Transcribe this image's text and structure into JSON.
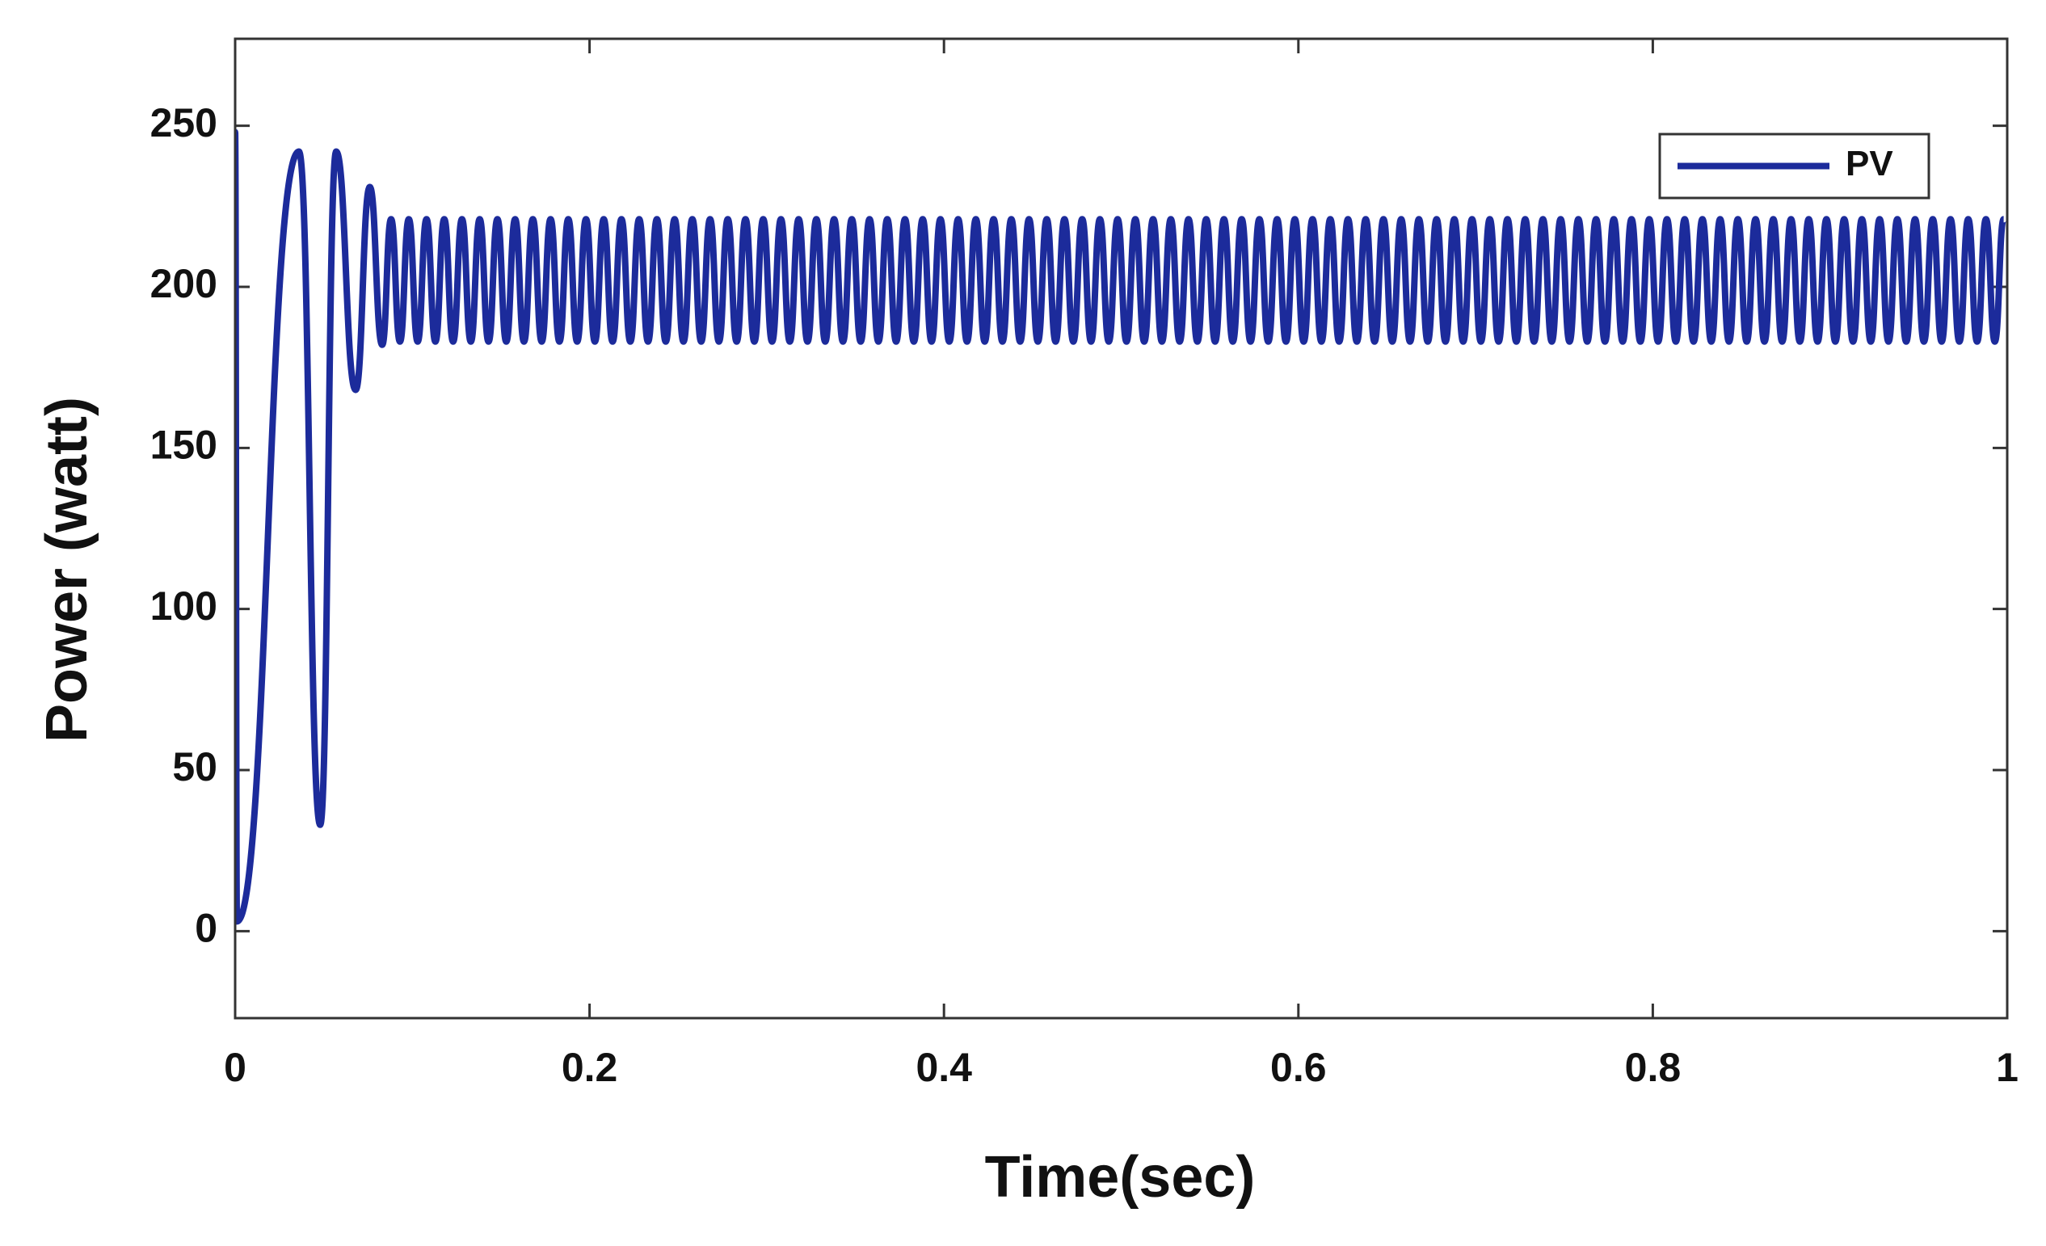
{
  "chart_data": {
    "type": "line",
    "xlabel": "Time(sec)",
    "ylabel": "Power (watt)",
    "xlim": [
      0,
      1
    ],
    "ylim": [
      -27,
      277
    ],
    "xticks": [
      0,
      0.2,
      0.4,
      0.6,
      0.8,
      1
    ],
    "yticks": [
      0,
      50,
      100,
      150,
      200,
      250
    ],
    "legend": "upper right",
    "x": [
      0,
      0.001,
      0.036,
      0.048,
      0.057,
      0.068,
      0.076,
      0.083,
      0.088,
      0.093,
      0.098,
      0.103,
      0.108,
      0.113,
      0.118,
      0.123,
      0.128,
      0.133,
      0.138,
      0.143,
      0.148,
      0.153,
      0.158,
      0.163,
      0.168,
      0.173,
      0.178,
      0.183,
      0.188,
      0.193,
      0.198,
      0.203,
      0.208,
      0.213,
      0.218,
      0.223,
      0.228,
      0.233,
      0.238,
      0.243,
      0.248,
      0.253,
      0.258,
      0.263,
      0.268,
      0.273,
      0.278,
      0.283,
      0.288,
      0.293,
      0.298,
      0.303,
      0.308,
      0.313,
      0.318,
      0.323,
      0.328,
      0.333,
      0.338,
      0.343,
      0.348,
      0.353,
      0.358,
      0.363,
      0.368,
      0.373,
      0.378,
      0.383,
      0.388,
      0.393,
      0.398,
      0.403,
      0.408,
      0.413,
      0.418,
      0.423,
      0.428,
      0.433,
      0.438,
      0.443,
      0.448,
      0.453,
      0.458,
      0.463,
      0.468,
      0.473,
      0.478,
      0.483,
      0.488,
      0.493,
      0.498,
      0.503,
      0.508,
      0.513,
      0.518,
      0.523,
      0.528,
      0.533,
      0.538,
      0.543,
      0.548,
      0.553,
      0.558,
      0.563,
      0.568,
      0.573,
      0.578,
      0.583,
      0.588,
      0.593,
      0.598,
      0.603,
      0.608,
      0.613,
      0.618,
      0.623,
      0.628,
      0.633,
      0.638,
      0.643,
      0.648,
      0.653,
      0.658,
      0.663,
      0.668,
      0.673,
      0.678,
      0.683,
      0.688,
      0.693,
      0.698,
      0.703,
      0.708,
      0.713,
      0.718,
      0.723,
      0.728,
      0.733,
      0.738,
      0.743,
      0.748,
      0.753,
      0.758,
      0.763,
      0.768,
      0.773,
      0.778,
      0.783,
      0.788,
      0.793,
      0.798,
      0.803,
      0.808,
      0.813,
      0.818,
      0.823,
      0.828,
      0.833,
      0.838,
      0.843,
      0.848,
      0.853,
      0.858,
      0.863,
      0.868,
      0.873,
      0.878,
      0.883,
      0.888,
      0.893,
      0.898,
      0.903,
      0.908,
      0.913,
      0.918,
      0.923,
      0.928,
      0.933,
      0.938,
      0.943,
      0.948,
      0.953,
      0.958,
      0.963,
      0.968,
      0.973,
      0.978,
      0.983,
      0.988,
      0.993,
      0.998
    ],
    "series": [
      {
        "name": "PV",
        "color": "#1c2b9b",
        "values": [
          248,
          3,
          242,
          33,
          242,
          168,
          231,
          182,
          221,
          183,
          221,
          183,
          221,
          183,
          221,
          183,
          221,
          183,
          221,
          183,
          221,
          183,
          221,
          183,
          221,
          183,
          221,
          183,
          221,
          183,
          221,
          183,
          221,
          183,
          221,
          183,
          221,
          183,
          221,
          183,
          221,
          183,
          221,
          183,
          221,
          183,
          221,
          183,
          221,
          183,
          221,
          183,
          221,
          183,
          221,
          183,
          221,
          183,
          221,
          183,
          221,
          183,
          221,
          183,
          221,
          183,
          221,
          183,
          221,
          183,
          221,
          183,
          221,
          183,
          221,
          183,
          221,
          183,
          221,
          183,
          221,
          183,
          221,
          183,
          221,
          183,
          221,
          183,
          221,
          183,
          221,
          183,
          221,
          183,
          221,
          183,
          221,
          183,
          221,
          183,
          221,
          183,
          221,
          183,
          221,
          183,
          221,
          183,
          221,
          183,
          221,
          183,
          221,
          183,
          221,
          183,
          221,
          183,
          221,
          183,
          221,
          183,
          221,
          183,
          221,
          183,
          221,
          183,
          221,
          183,
          221,
          183,
          221,
          183,
          221,
          183,
          221,
          183,
          221,
          183,
          221,
          183,
          221,
          183,
          221,
          183,
          221,
          183,
          221,
          183,
          221,
          183,
          221,
          183,
          221,
          183,
          221,
          183,
          221,
          183,
          221,
          183,
          221,
          183,
          221,
          183,
          221,
          183,
          221,
          183,
          221,
          183,
          221,
          183,
          221,
          183,
          221,
          183,
          221,
          183,
          221,
          183,
          221,
          183,
          221,
          183,
          221,
          183,
          221,
          183,
          221
        ]
      }
    ]
  }
}
